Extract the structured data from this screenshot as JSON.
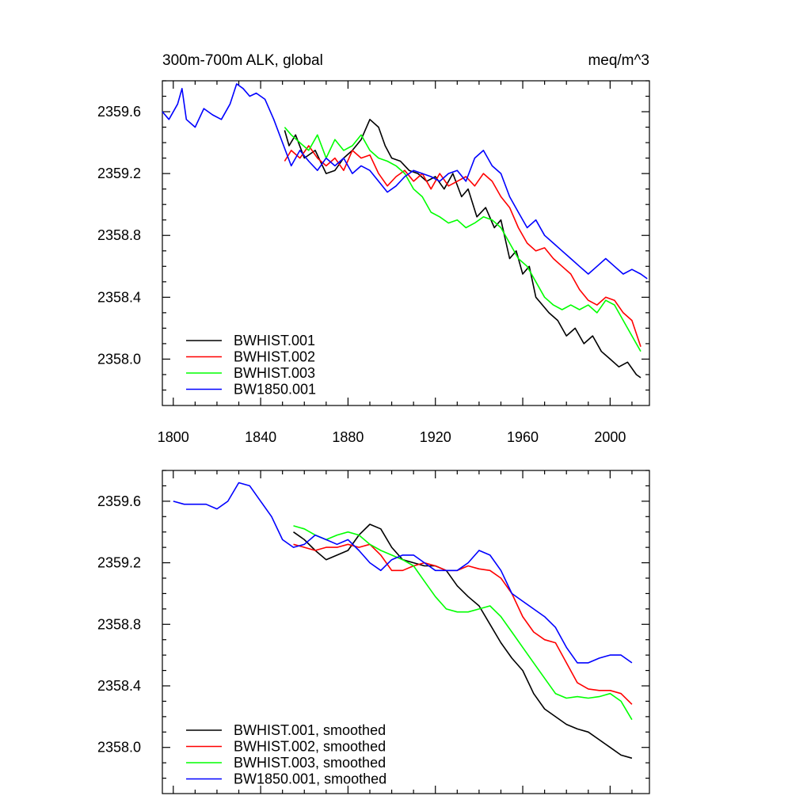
{
  "chart_data": [
    {
      "type": "line",
      "title": "300m-700m ALK, global",
      "units": "meq/m^3",
      "xlim": [
        1795,
        2018
      ],
      "ylim": [
        2357.7,
        2359.8
      ],
      "xticks": [
        1800,
        1840,
        1880,
        1920,
        1960,
        2000
      ],
      "xtick_labels": [
        "1800",
        "1840",
        "1880",
        "1920",
        "1960",
        "2000"
      ],
      "yticks": [
        2358.0,
        2358.4,
        2358.8,
        2359.2,
        2359.6
      ],
      "ytick_labels": [
        "2358.0",
        "2358.4",
        "2358.8",
        "2359.2",
        "2359.6"
      ],
      "legend_position": "bottom-left",
      "series": [
        {
          "name": "BWHIST.001",
          "color": "#000000",
          "x": [
            1851,
            1853,
            1856,
            1860,
            1865,
            1870,
            1874,
            1878,
            1882,
            1886,
            1890,
            1894,
            1897,
            1900,
            1904,
            1908,
            1912,
            1916,
            1920,
            1924,
            1928,
            1932,
            1935,
            1939,
            1943,
            1947,
            1950,
            1954,
            1957,
            1960,
            1963,
            1966,
            1969,
            1972,
            1976,
            1980,
            1984,
            1988,
            1992,
            1996,
            2000,
            2004,
            2008,
            2012,
            2014
          ],
          "values": [
            2359.48,
            2359.38,
            2359.45,
            2359.3,
            2359.35,
            2359.2,
            2359.22,
            2359.3,
            2359.35,
            2359.42,
            2359.55,
            2359.5,
            2359.38,
            2359.3,
            2359.28,
            2359.22,
            2359.2,
            2359.15,
            2359.18,
            2359.1,
            2359.2,
            2359.05,
            2359.1,
            2358.92,
            2358.98,
            2358.85,
            2358.9,
            2358.65,
            2358.7,
            2358.55,
            2358.6,
            2358.4,
            2358.35,
            2358.3,
            2358.25,
            2358.15,
            2358.2,
            2358.1,
            2358.15,
            2358.05,
            2358.0,
            2357.95,
            2357.98,
            2357.9,
            2357.88
          ]
        },
        {
          "name": "BWHIST.002",
          "color": "#ff0000",
          "x": [
            1851,
            1854,
            1858,
            1862,
            1866,
            1870,
            1874,
            1878,
            1882,
            1886,
            1890,
            1894,
            1898,
            1902,
            1906,
            1910,
            1914,
            1918,
            1922,
            1926,
            1930,
            1934,
            1938,
            1942,
            1946,
            1950,
            1954,
            1958,
            1962,
            1966,
            1970,
            1974,
            1978,
            1982,
            1986,
            1990,
            1994,
            1998,
            2002,
            2006,
            2010,
            2014
          ],
          "values": [
            2359.28,
            2359.35,
            2359.3,
            2359.38,
            2359.3,
            2359.25,
            2359.3,
            2359.22,
            2359.35,
            2359.3,
            2359.32,
            2359.2,
            2359.12,
            2359.18,
            2359.22,
            2359.15,
            2359.2,
            2359.1,
            2359.2,
            2359.12,
            2359.15,
            2359.18,
            2359.12,
            2359.2,
            2359.15,
            2359.05,
            2358.98,
            2358.85,
            2358.75,
            2358.7,
            2358.72,
            2358.65,
            2358.6,
            2358.55,
            2358.45,
            2358.38,
            2358.35,
            2358.4,
            2358.38,
            2358.3,
            2358.25,
            2358.08
          ]
        },
        {
          "name": "BWHIST.003",
          "color": "#00ff00",
          "x": [
            1851,
            1854,
            1858,
            1862,
            1866,
            1870,
            1874,
            1878,
            1882,
            1886,
            1890,
            1894,
            1898,
            1902,
            1906,
            1910,
            1914,
            1918,
            1922,
            1926,
            1930,
            1934,
            1938,
            1942,
            1946,
            1950,
            1954,
            1958,
            1962,
            1966,
            1970,
            1974,
            1978,
            1982,
            1986,
            1990,
            1994,
            1998,
            2002,
            2006,
            2010,
            2014
          ],
          "values": [
            2359.5,
            2359.45,
            2359.4,
            2359.35,
            2359.45,
            2359.3,
            2359.42,
            2359.35,
            2359.38,
            2359.45,
            2359.35,
            2359.3,
            2359.28,
            2359.25,
            2359.2,
            2359.1,
            2359.05,
            2358.95,
            2358.92,
            2358.88,
            2358.9,
            2358.85,
            2358.88,
            2358.92,
            2358.9,
            2358.85,
            2358.75,
            2358.65,
            2358.6,
            2358.5,
            2358.4,
            2358.35,
            2358.32,
            2358.35,
            2358.32,
            2358.35,
            2358.3,
            2358.38,
            2358.35,
            2358.25,
            2358.15,
            2358.05
          ]
        },
        {
          "name": "BW1850.001",
          "color": "#0000ff",
          "x": [
            1795,
            1798,
            1802,
            1804,
            1806,
            1810,
            1814,
            1818,
            1822,
            1826,
            1829,
            1832,
            1835,
            1838,
            1842,
            1846,
            1850,
            1854,
            1858,
            1862,
            1866,
            1870,
            1874,
            1878,
            1882,
            1886,
            1890,
            1894,
            1898,
            1902,
            1906,
            1910,
            1914,
            1918,
            1922,
            1926,
            1930,
            1934,
            1938,
            1942,
            1946,
            1950,
            1954,
            1958,
            1962,
            1966,
            1970,
            1974,
            1978,
            1982,
            1986,
            1990,
            1994,
            1998,
            2002,
            2006,
            2010,
            2014,
            2017
          ],
          "values": [
            2359.6,
            2359.55,
            2359.65,
            2359.75,
            2359.55,
            2359.5,
            2359.62,
            2359.58,
            2359.55,
            2359.65,
            2359.78,
            2359.75,
            2359.7,
            2359.72,
            2359.68,
            2359.55,
            2359.4,
            2359.25,
            2359.35,
            2359.28,
            2359.22,
            2359.3,
            2359.25,
            2359.3,
            2359.2,
            2359.25,
            2359.22,
            2359.15,
            2359.08,
            2359.12,
            2359.18,
            2359.22,
            2359.2,
            2359.18,
            2359.15,
            2359.2,
            2359.22,
            2359.15,
            2359.3,
            2359.35,
            2359.25,
            2359.2,
            2359.05,
            2358.95,
            2358.85,
            2358.9,
            2358.8,
            2358.75,
            2358.7,
            2358.65,
            2358.6,
            2358.55,
            2358.6,
            2358.65,
            2358.6,
            2358.55,
            2358.58,
            2358.55,
            2358.52
          ]
        }
      ]
    },
    {
      "type": "line",
      "title": "",
      "units": "",
      "xlim": [
        1795,
        2018
      ],
      "ylim": [
        2357.7,
        2359.8
      ],
      "xticks": [
        1800,
        1840,
        1880,
        1920,
        1960,
        2000
      ],
      "xtick_labels": [
        "",
        "",
        "",
        "",
        "",
        ""
      ],
      "yticks": [
        2358.0,
        2358.4,
        2358.8,
        2359.2,
        2359.6
      ],
      "ytick_labels": [
        "2358.0",
        "2358.4",
        "2358.8",
        "2359.2",
        "2359.6"
      ],
      "legend_position": "bottom-left",
      "series": [
        {
          "name": "BWHIST.001, smoothed",
          "color": "#000000",
          "x": [
            1855,
            1860,
            1865,
            1870,
            1875,
            1880,
            1885,
            1890,
            1895,
            1900,
            1905,
            1910,
            1915,
            1920,
            1925,
            1930,
            1935,
            1940,
            1945,
            1950,
            1955,
            1960,
            1965,
            1970,
            1975,
            1980,
            1985,
            1990,
            1995,
            2000,
            2005,
            2010
          ],
          "values": [
            2359.4,
            2359.35,
            2359.28,
            2359.22,
            2359.25,
            2359.28,
            2359.38,
            2359.45,
            2359.42,
            2359.3,
            2359.22,
            2359.2,
            2359.18,
            2359.18,
            2359.15,
            2359.05,
            2358.98,
            2358.92,
            2358.8,
            2358.68,
            2358.58,
            2358.5,
            2358.35,
            2358.25,
            2358.2,
            2358.15,
            2358.12,
            2358.1,
            2358.05,
            2358.0,
            2357.95,
            2357.93
          ]
        },
        {
          "name": "BWHIST.002, smoothed",
          "color": "#ff0000",
          "x": [
            1855,
            1860,
            1865,
            1870,
            1875,
            1880,
            1885,
            1890,
            1895,
            1900,
            1905,
            1910,
            1915,
            1920,
            1925,
            1930,
            1935,
            1940,
            1945,
            1950,
            1955,
            1960,
            1965,
            1970,
            1975,
            1980,
            1985,
            1990,
            1995,
            2000,
            2005,
            2010
          ],
          "values": [
            2359.32,
            2359.3,
            2359.28,
            2359.3,
            2359.3,
            2359.32,
            2359.3,
            2359.32,
            2359.25,
            2359.15,
            2359.15,
            2359.18,
            2359.2,
            2359.18,
            2359.15,
            2359.15,
            2359.18,
            2359.16,
            2359.15,
            2359.1,
            2359.0,
            2358.85,
            2358.75,
            2358.7,
            2358.68,
            2358.55,
            2358.42,
            2358.38,
            2358.37,
            2358.37,
            2358.35,
            2358.28
          ]
        },
        {
          "name": "BWHIST.003, smoothed",
          "color": "#00ff00",
          "x": [
            1855,
            1860,
            1865,
            1870,
            1875,
            1880,
            1885,
            1890,
            1895,
            1900,
            1905,
            1910,
            1915,
            1920,
            1925,
            1930,
            1935,
            1940,
            1945,
            1950,
            1955,
            1960,
            1965,
            1970,
            1975,
            1980,
            1985,
            1990,
            1995,
            2000,
            2005,
            2010
          ],
          "values": [
            2359.44,
            2359.42,
            2359.38,
            2359.35,
            2359.38,
            2359.4,
            2359.38,
            2359.32,
            2359.28,
            2359.25,
            2359.22,
            2359.18,
            2359.08,
            2358.98,
            2358.9,
            2358.88,
            2358.88,
            2358.9,
            2358.92,
            2358.85,
            2358.75,
            2358.65,
            2358.55,
            2358.45,
            2358.35,
            2358.32,
            2358.33,
            2358.32,
            2358.33,
            2358.35,
            2358.3,
            2358.18
          ]
        },
        {
          "name": "BW1850.001, smoothed",
          "color": "#0000ff",
          "x": [
            1800,
            1805,
            1810,
            1815,
            1820,
            1825,
            1830,
            1835,
            1840,
            1845,
            1850,
            1855,
            1860,
            1865,
            1870,
            1875,
            1880,
            1885,
            1890,
            1895,
            1900,
            1905,
            1910,
            1915,
            1920,
            1925,
            1930,
            1935,
            1940,
            1945,
            1950,
            1955,
            1960,
            1965,
            1970,
            1975,
            1980,
            1985,
            1990,
            1995,
            2000,
            2005,
            2010
          ],
          "values": [
            2359.6,
            2359.58,
            2359.58,
            2359.58,
            2359.55,
            2359.6,
            2359.72,
            2359.7,
            2359.6,
            2359.5,
            2359.35,
            2359.3,
            2359.32,
            2359.38,
            2359.35,
            2359.32,
            2359.35,
            2359.28,
            2359.2,
            2359.15,
            2359.22,
            2359.25,
            2359.25,
            2359.2,
            2359.15,
            2359.15,
            2359.15,
            2359.2,
            2359.28,
            2359.25,
            2359.15,
            2359.0,
            2358.95,
            2358.9,
            2358.85,
            2358.78,
            2358.65,
            2358.55,
            2358.55,
            2358.58,
            2358.6,
            2358.6,
            2358.55
          ]
        }
      ]
    }
  ]
}
